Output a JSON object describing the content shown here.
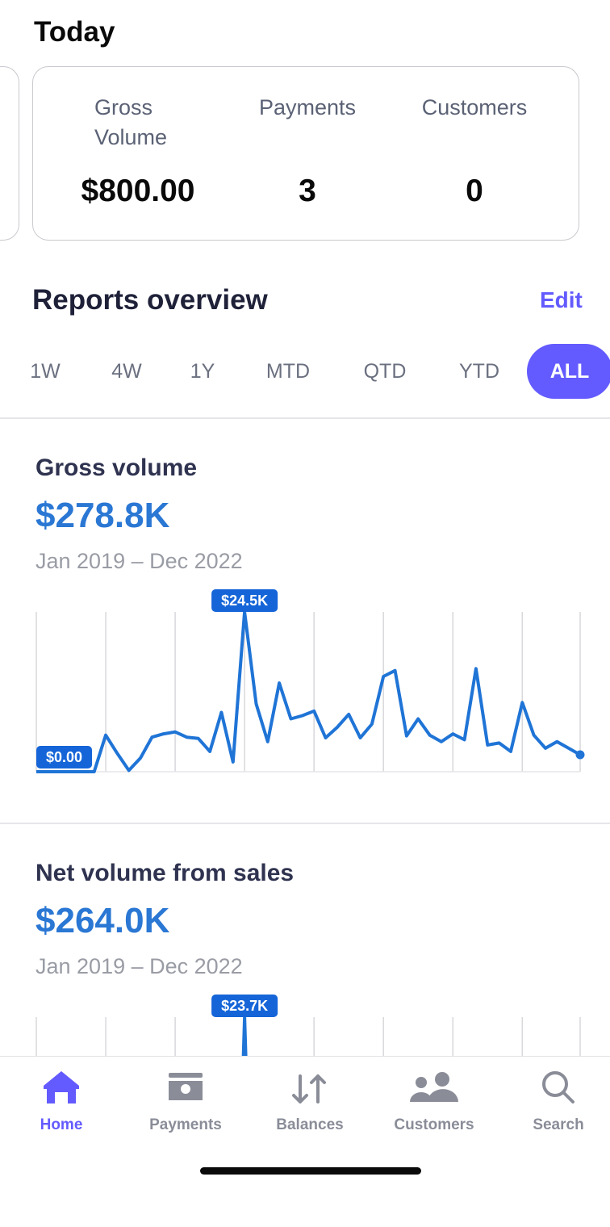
{
  "today": {
    "title": "Today",
    "metrics": [
      {
        "label": "Gross Volume",
        "value": "$800.00"
      },
      {
        "label": "Payments",
        "value": "3"
      },
      {
        "label": "Customers",
        "value": "0"
      }
    ]
  },
  "reports": {
    "title": "Reports overview",
    "edit": "Edit",
    "ranges": [
      "1W",
      "4W",
      "1Y",
      "MTD",
      "QTD",
      "YTD",
      "ALL"
    ],
    "selected": "ALL"
  },
  "cards": [
    {
      "title": "Gross volume",
      "total": "$278.8K",
      "period": "Jan 2019 – Dec 2022",
      "chart": {
        "type": "line",
        "color": "#1f74d6",
        "values": [
          0,
          0,
          0,
          0,
          0,
          0,
          5.6,
          2.8,
          0.2,
          2.1,
          5.3,
          5.8,
          6.1,
          5.3,
          5.1,
          3.1,
          9.1,
          1.5,
          24.5,
          10.4,
          4.6,
          13.6,
          8.1,
          8.6,
          9.3,
          5.2,
          6.8,
          8.8,
          5.2,
          7.3,
          14.6,
          15.5,
          5.5,
          8.1,
          5.6,
          4.6,
          5.8,
          4.9,
          15.8,
          4.1,
          4.4,
          3.1,
          10.6,
          5.6,
          3.6,
          4.6,
          3.6,
          2.6
        ],
        "value_labels": [
          "$0.00",
          null,
          null,
          null,
          null,
          null,
          null,
          null,
          null,
          null,
          null,
          null,
          null,
          null,
          null,
          null,
          null,
          null,
          "$24.5K",
          null,
          null,
          null,
          null,
          null,
          null,
          null,
          null,
          null,
          null,
          null,
          null,
          null,
          null,
          null,
          null,
          null,
          null,
          null,
          null,
          null,
          null,
          null,
          null,
          null,
          null,
          null,
          null,
          null
        ]
      }
    },
    {
      "title": "Net volume from sales",
      "total": "$264.0K",
      "period": "Jan 2019 – Dec 2022",
      "chart": {
        "type": "line",
        "color": "#1f74d6",
        "values": [
          null,
          null,
          null,
          null,
          null,
          null,
          null,
          null,
          null,
          null,
          null,
          null,
          null,
          null,
          null,
          null,
          null,
          null,
          23.7,
          null,
          null,
          null,
          null,
          null,
          null,
          null,
          null,
          null,
          null,
          null,
          null,
          null,
          null,
          null,
          null,
          null,
          null,
          null,
          null,
          null,
          null,
          null,
          null,
          null,
          null,
          null,
          null,
          null
        ],
        "value_labels": [
          null,
          null,
          null,
          null,
          null,
          null,
          null,
          null,
          null,
          null,
          null,
          null,
          null,
          null,
          null,
          null,
          null,
          null,
          "$23.7K",
          null,
          null,
          null,
          null,
          null,
          null,
          null,
          null,
          null,
          null,
          null,
          null,
          null,
          null,
          null,
          null,
          null,
          null,
          null,
          null,
          null,
          null,
          null,
          null,
          null,
          null,
          null,
          null,
          null
        ]
      }
    }
  ],
  "nav": {
    "items": [
      "Home",
      "Payments",
      "Balances",
      "Customers",
      "Search"
    ],
    "active": "Home"
  }
}
